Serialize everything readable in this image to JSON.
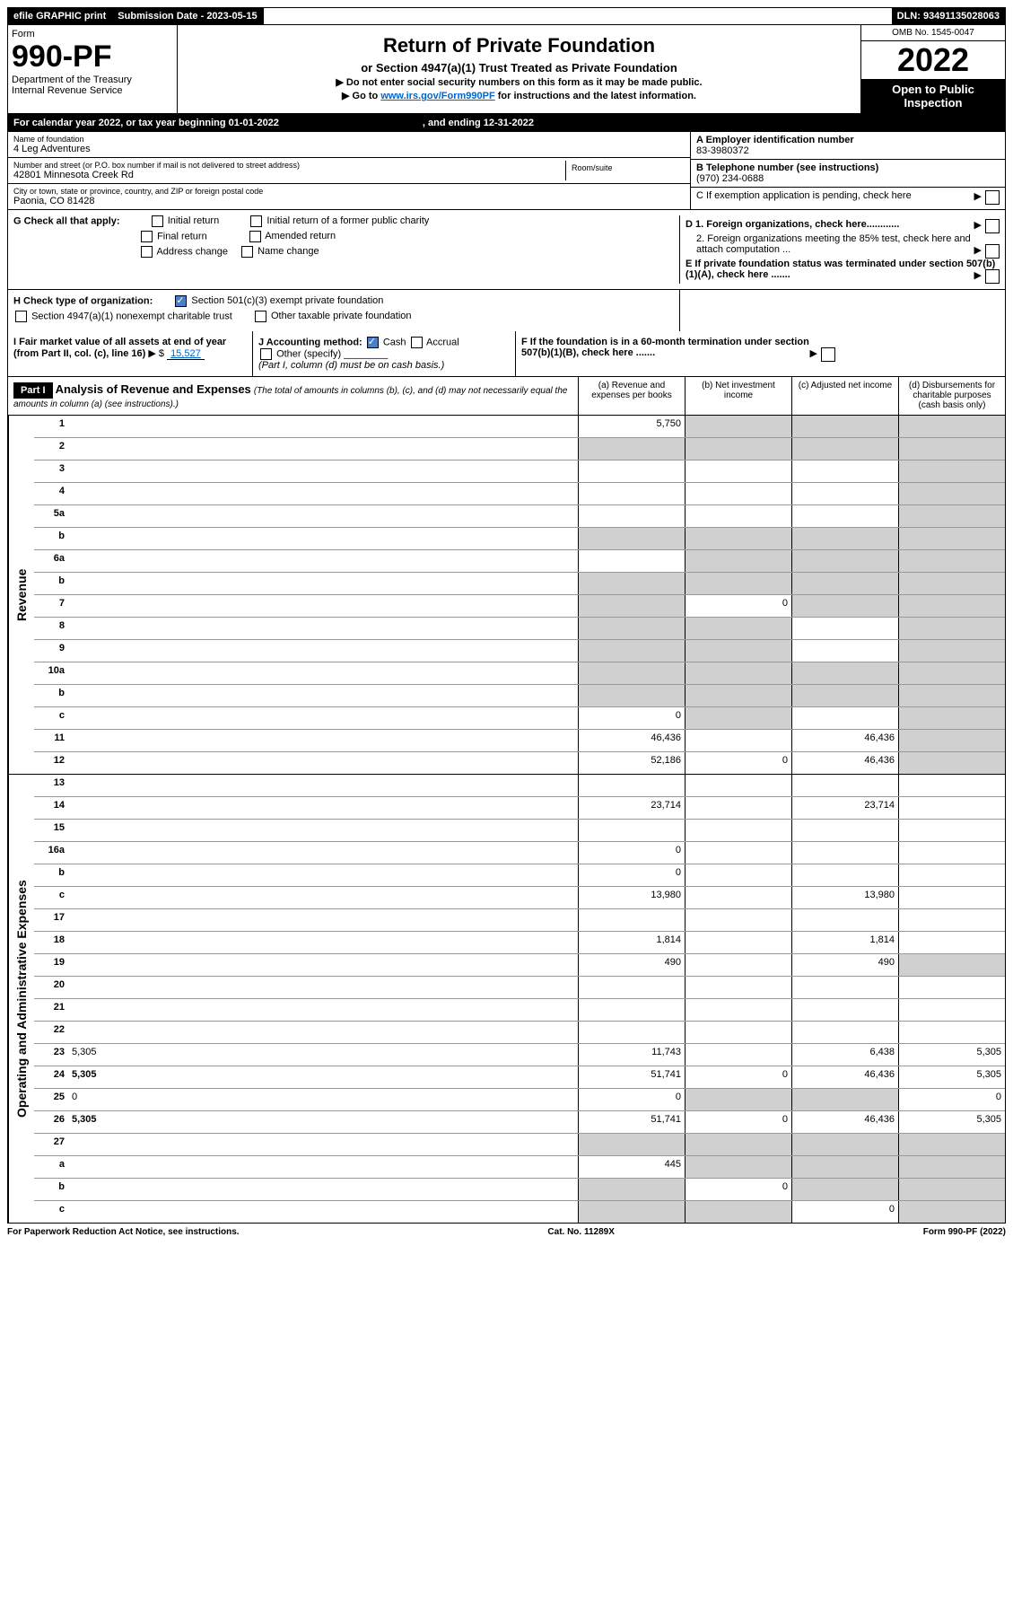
{
  "topbar": {
    "efile": "efile GRAPHIC print",
    "sub_label": "Submission Date - 2023-05-15",
    "dln": "DLN: 93491135028063"
  },
  "header": {
    "form_word": "Form",
    "form_num": "990-PF",
    "dept": "Department of the Treasury",
    "irs": "Internal Revenue Service",
    "title": "Return of Private Foundation",
    "subtitle": "or Section 4947(a)(1) Trust Treated as Private Foundation",
    "note1": "▶ Do not enter social security numbers on this form as it may be made public.",
    "note2_pre": "▶ Go to ",
    "note2_link": "www.irs.gov/Form990PF",
    "note2_post": " for instructions and the latest information.",
    "omb": "OMB No. 1545-0047",
    "year": "2022",
    "open": "Open to Public Inspection"
  },
  "calyear": {
    "text": "For calendar year 2022, or tax year beginning 01-01-2022",
    "ending": ", and ending 12-31-2022"
  },
  "entity": {
    "name_label": "Name of foundation",
    "name": "4 Leg Adventures",
    "addr_label": "Number and street (or P.O. box number if mail is not delivered to street address)",
    "addr": "42801 Minnesota Creek Rd",
    "room_label": "Room/suite",
    "city_label": "City or town, state or province, country, and ZIP or foreign postal code",
    "city": "Paonia, CO  81428",
    "a_label": "A Employer identification number",
    "ein": "83-3980372",
    "b_label": "B Telephone number (see instructions)",
    "phone": "(970) 234-0688",
    "c_label": "C If exemption application is pending, check here"
  },
  "g": {
    "label": "G Check all that apply:",
    "initial": "Initial return",
    "initial_former": "Initial return of a former public charity",
    "final": "Final return",
    "amended": "Amended return",
    "addr_change": "Address change",
    "name_change": "Name change",
    "d1": "D 1. Foreign organizations, check here............",
    "d2": "2. Foreign organizations meeting the 85% test, check here and attach computation ...",
    "e": "E  If private foundation status was terminated under section 507(b)(1)(A), check here ......."
  },
  "h": {
    "label": "H Check type of organization:",
    "opt1": "Section 501(c)(3) exempt private foundation",
    "opt2": "Section 4947(a)(1) nonexempt charitable trust",
    "opt3": "Other taxable private foundation",
    "i_label": "I Fair market value of all assets at end of year (from Part II, col. (c), line 16)",
    "i_val": "15,527",
    "j_label": "J Accounting method:",
    "j_cash": "Cash",
    "j_accrual": "Accrual",
    "j_other": "Other (specify)",
    "j_note": "(Part I, column (d) must be on cash basis.)",
    "f": "F  If the foundation is in a 60-month termination under section 507(b)(1)(B), check here ......."
  },
  "part1": {
    "label": "Part I",
    "title": "Analysis of Revenue and Expenses",
    "sub": "(The total of amounts in columns (b), (c), and (d) may not necessarily equal the amounts in column (a) (see instructions).)",
    "col_a": "(a) Revenue and expenses per books",
    "col_b": "(b) Net investment income",
    "col_c": "(c) Adjusted net income",
    "col_d": "(d) Disbursements for charitable purposes (cash basis only)"
  },
  "sides": {
    "revenue": "Revenue",
    "expenses": "Operating and Administrative Expenses"
  },
  "rows": [
    {
      "n": "1",
      "d": "",
      "a": "5,750",
      "b": "",
      "c": "",
      "grey_b": true,
      "grey_c": true,
      "grey_d": true
    },
    {
      "n": "2",
      "d": "",
      "a": "",
      "b": "",
      "c": "",
      "grey": true
    },
    {
      "n": "3",
      "d": "",
      "a": "",
      "b": "",
      "c": "",
      "grey_d": true
    },
    {
      "n": "4",
      "d": "",
      "a": "",
      "b": "",
      "c": "",
      "grey_d": true
    },
    {
      "n": "5a",
      "d": "",
      "a": "",
      "b": "",
      "c": "",
      "grey_d": true
    },
    {
      "n": "b",
      "d": "",
      "a": "",
      "b": "",
      "c": "",
      "grey": true
    },
    {
      "n": "6a",
      "d": "",
      "a": "",
      "b": "",
      "c": "",
      "grey_b": true,
      "grey_c": true,
      "grey_d": true
    },
    {
      "n": "b",
      "d": "",
      "a": "",
      "b": "",
      "c": "",
      "grey": true
    },
    {
      "n": "7",
      "d": "",
      "a": "",
      "b": "0",
      "c": "",
      "grey_a": true,
      "grey_c": true,
      "grey_d": true
    },
    {
      "n": "8",
      "d": "",
      "a": "",
      "b": "",
      "c": "",
      "grey_a": true,
      "grey_b": true,
      "grey_d": true
    },
    {
      "n": "9",
      "d": "",
      "a": "",
      "b": "",
      "c": "",
      "grey_a": true,
      "grey_b": true,
      "grey_d": true
    },
    {
      "n": "10a",
      "d": "",
      "a": "",
      "b": "",
      "c": "",
      "grey": true
    },
    {
      "n": "b",
      "d": "",
      "a": "",
      "b": "",
      "c": "",
      "grey": true
    },
    {
      "n": "c",
      "d": "",
      "a": "0",
      "b": "",
      "c": "",
      "grey_b": true,
      "grey_d": true
    },
    {
      "n": "11",
      "d": "",
      "a": "46,436",
      "b": "",
      "c": "46,436",
      "grey_d": true
    },
    {
      "n": "12",
      "d": "",
      "a": "52,186",
      "b": "0",
      "c": "46,436",
      "bold": true,
      "grey_d": true
    }
  ],
  "exp_rows": [
    {
      "n": "13",
      "d": "",
      "a": "",
      "b": "",
      "c": ""
    },
    {
      "n": "14",
      "d": "",
      "a": "23,714",
      "b": "",
      "c": "23,714"
    },
    {
      "n": "15",
      "d": "",
      "a": "",
      "b": "",
      "c": ""
    },
    {
      "n": "16a",
      "d": "",
      "a": "0",
      "b": "",
      "c": ""
    },
    {
      "n": "b",
      "d": "",
      "a": "0",
      "b": "",
      "c": ""
    },
    {
      "n": "c",
      "d": "",
      "a": "13,980",
      "b": "",
      "c": "13,980"
    },
    {
      "n": "17",
      "d": "",
      "a": "",
      "b": "",
      "c": ""
    },
    {
      "n": "18",
      "d": "",
      "a": "1,814",
      "b": "",
      "c": "1,814"
    },
    {
      "n": "19",
      "d": "",
      "a": "490",
      "b": "",
      "c": "490",
      "grey_d": true
    },
    {
      "n": "20",
      "d": "",
      "a": "",
      "b": "",
      "c": ""
    },
    {
      "n": "21",
      "d": "",
      "a": "",
      "b": "",
      "c": ""
    },
    {
      "n": "22",
      "d": "",
      "a": "",
      "b": "",
      "c": ""
    },
    {
      "n": "23",
      "d": "5,305",
      "a": "11,743",
      "b": "",
      "c": "6,438"
    },
    {
      "n": "24",
      "d": "5,305",
      "a": "51,741",
      "b": "0",
      "c": "46,436",
      "bold": true
    },
    {
      "n": "25",
      "d": "0",
      "a": "0",
      "b": "",
      "c": "",
      "grey_b": true,
      "grey_c": true
    },
    {
      "n": "26",
      "d": "5,305",
      "a": "51,741",
      "b": "0",
      "c": "46,436",
      "bold": true
    },
    {
      "n": "27",
      "d": "",
      "a": "",
      "b": "",
      "c": "",
      "grey": true
    },
    {
      "n": "a",
      "d": "",
      "a": "445",
      "b": "",
      "c": "",
      "bold": true,
      "grey_b": true,
      "grey_c": true,
      "grey_d": true
    },
    {
      "n": "b",
      "d": "",
      "a": "",
      "b": "0",
      "c": "",
      "bold": true,
      "grey_a": true,
      "grey_c": true,
      "grey_d": true
    },
    {
      "n": "c",
      "d": "",
      "a": "",
      "b": "",
      "c": "0",
      "bold": true,
      "grey_a": true,
      "grey_b": true,
      "grey_d": true
    }
  ],
  "footer": {
    "left": "For Paperwork Reduction Act Notice, see instructions.",
    "center": "Cat. No. 11289X",
    "right": "Form 990-PF (2022)"
  }
}
